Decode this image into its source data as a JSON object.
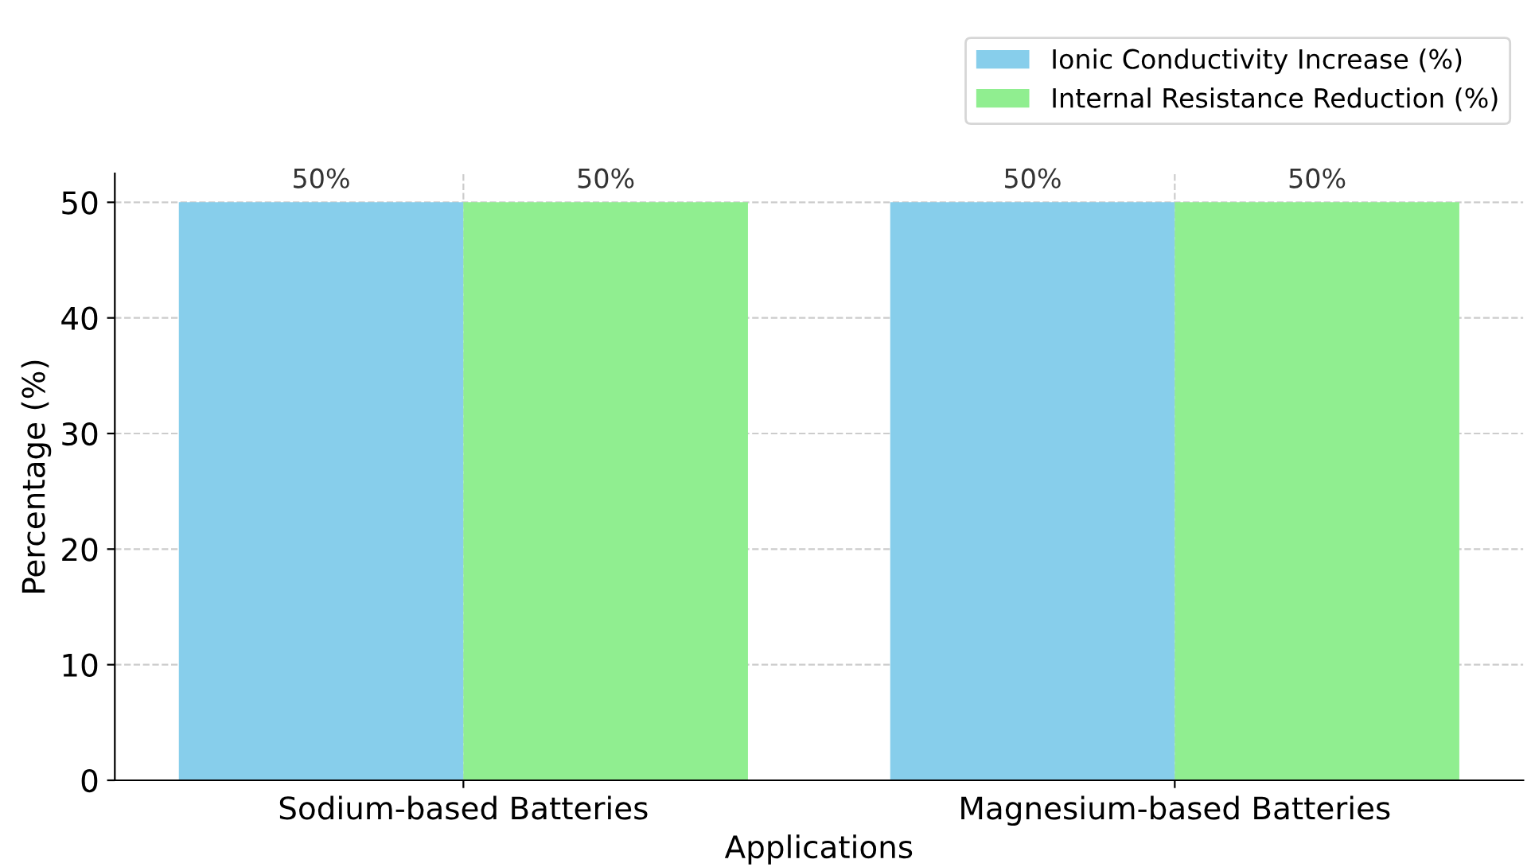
{
  "chart_data": {
    "type": "bar",
    "xlabel": "Applications",
    "ylabel": "Percentage (%)",
    "categories": [
      "Sodium-based Batteries",
      "Magnesium-based Batteries"
    ],
    "series": [
      {
        "name": "Ionic Conductivity Increase (%)",
        "color": "#87ceeb",
        "values": [
          50,
          50
        ]
      },
      {
        "name": "Internal Resistance Reduction (%)",
        "color": "#90ee90",
        "values": [
          50,
          50
        ]
      }
    ],
    "value_labels": [
      "50%",
      "50%",
      "50%",
      "50%"
    ],
    "ylim": [
      0,
      52.5
    ],
    "yticks": [
      0,
      10,
      20,
      30,
      40,
      50
    ],
    "grid": true,
    "legend": "top right"
  }
}
